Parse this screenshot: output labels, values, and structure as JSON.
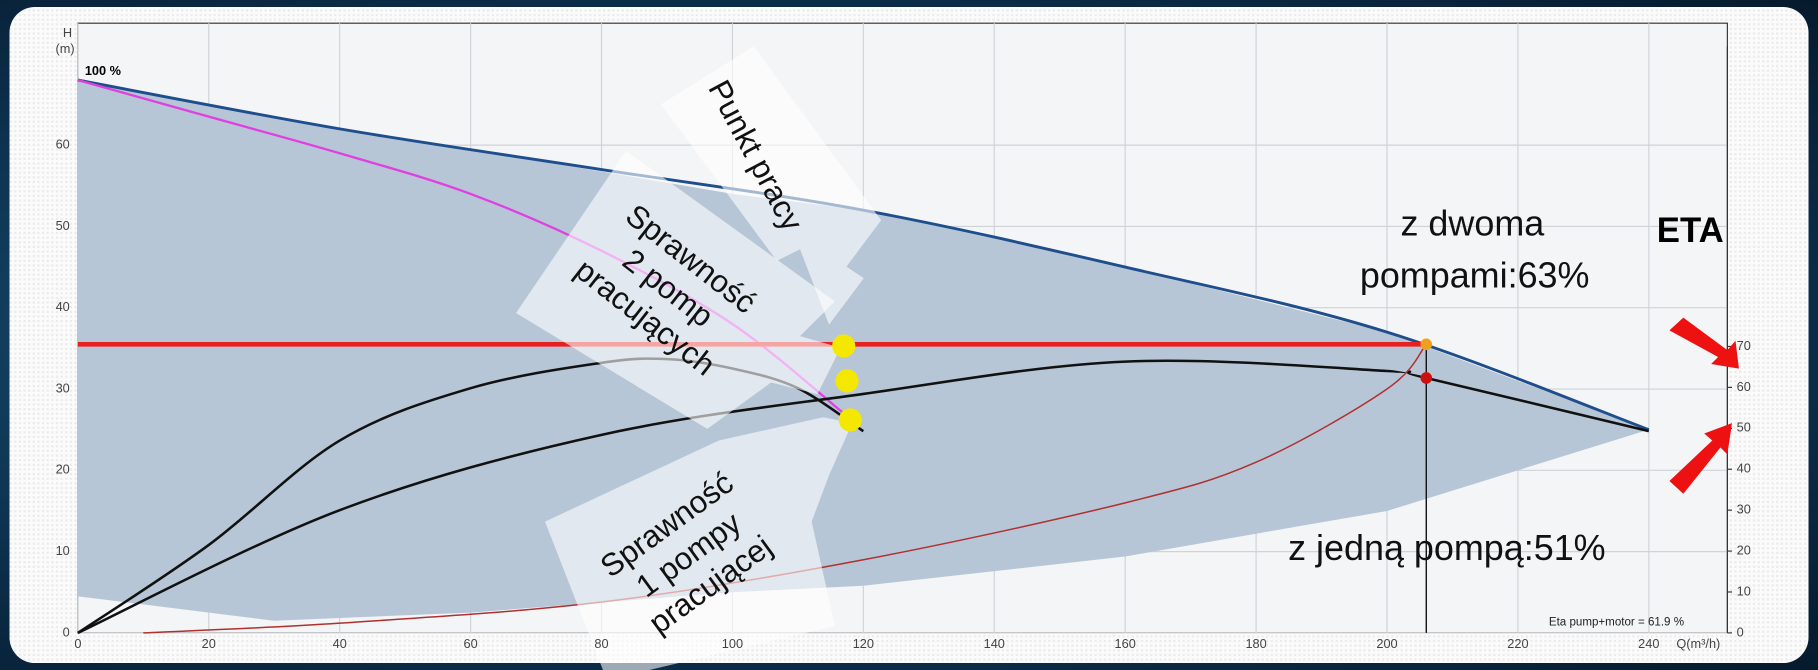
{
  "chart_data": {
    "type": "line",
    "x_label": "Q(m³/h)",
    "y_label": "H",
    "y_unit": "(m)",
    "xlim": [
      0,
      252
    ],
    "xticks": [
      0,
      20,
      40,
      60,
      80,
      100,
      120,
      140,
      160,
      180,
      200,
      220,
      240
    ],
    "ylim": [
      0,
      75
    ],
    "yticks": [
      0,
      10,
      20,
      30,
      40,
      50,
      60
    ],
    "y2lim": [
      0,
      149
    ],
    "y2ticks": [
      0,
      10,
      20,
      30,
      40,
      50,
      60,
      70
    ],
    "grid": true,
    "band": {
      "color": "#b7c6d6",
      "x": [
        0,
        30,
        60,
        100,
        120,
        160,
        200,
        240
      ],
      "upper": [
        68,
        63.5,
        59.5,
        54,
        52,
        45,
        37,
        25
      ],
      "lower": [
        4.5,
        1.5,
        2.5,
        5,
        5.8,
        9.4,
        15,
        25
      ]
    },
    "series": [
      {
        "color": "#1f4e8c",
        "x": [
          0,
          40,
          80,
          120,
          160,
          200,
          240
        ],
        "values": [
          68,
          62,
          57,
          52,
          45,
          37,
          25
        ]
      },
      {
        "color": "#e040e0",
        "x": [
          0,
          20,
          40,
          60,
          80,
          100,
          117
        ],
        "values": [
          68,
          63.5,
          59,
          54,
          47,
          38,
          27
        ]
      },
      {
        "color": "#111111",
        "axis": "y2",
        "x": [
          0,
          20,
          40,
          60,
          80,
          90,
          100,
          110,
          120
        ],
        "values": [
          0,
          21.5,
          47,
          59.8,
          66,
          66.9,
          64.6,
          59.8,
          49.3
        ]
      },
      {
        "color": "#111111",
        "axis": "y2",
        "x": [
          0,
          40,
          80,
          120,
          160,
          200,
          206,
          240
        ],
        "values": [
          0,
          30,
          48.4,
          58.4,
          66.3,
          64,
          62.3,
          49.3
        ]
      },
      {
        "color": "#b03030",
        "x": [
          10,
          40,
          80,
          120,
          160,
          180,
          200,
          206
        ],
        "values": [
          0,
          1.2,
          3.8,
          9,
          16,
          21,
          30,
          35.5
        ]
      },
      {
        "color": "#e82020",
        "x": [
          0,
          206
        ],
        "values": [
          35.5,
          35.5
        ]
      },
      {
        "color": "#111111",
        "x": [
          206,
          206
        ],
        "values": [
          0,
          35.5
        ]
      }
    ],
    "markers": [
      {
        "color": "#f5e800",
        "x": [
          117,
          117.5,
          118
        ],
        "values": [
          35.3,
          31,
          26.2
        ]
      },
      {
        "color": "#f0a020",
        "x": [
          206
        ],
        "values": [
          35.5
        ]
      },
      {
        "color": "#cc1010",
        "axis": "y2",
        "x": [
          206
        ],
        "values": [
          62.3
        ]
      }
    ],
    "annotations": {
      "curve_label": "100 %",
      "duty_point": "Punkt pracy",
      "eff_two": [
        "Sprawność",
        "2 pomp",
        "pracujących"
      ],
      "eff_one": [
        "Sprawność",
        "1 pompy",
        "pracującej"
      ],
      "two_pumps": [
        "z dwoma",
        "pompami:63%"
      ],
      "eta": "ETA",
      "one_pump": "z jedną pompą:51%",
      "eta_note": "Eta pump+motor = 61.9 %"
    }
  }
}
